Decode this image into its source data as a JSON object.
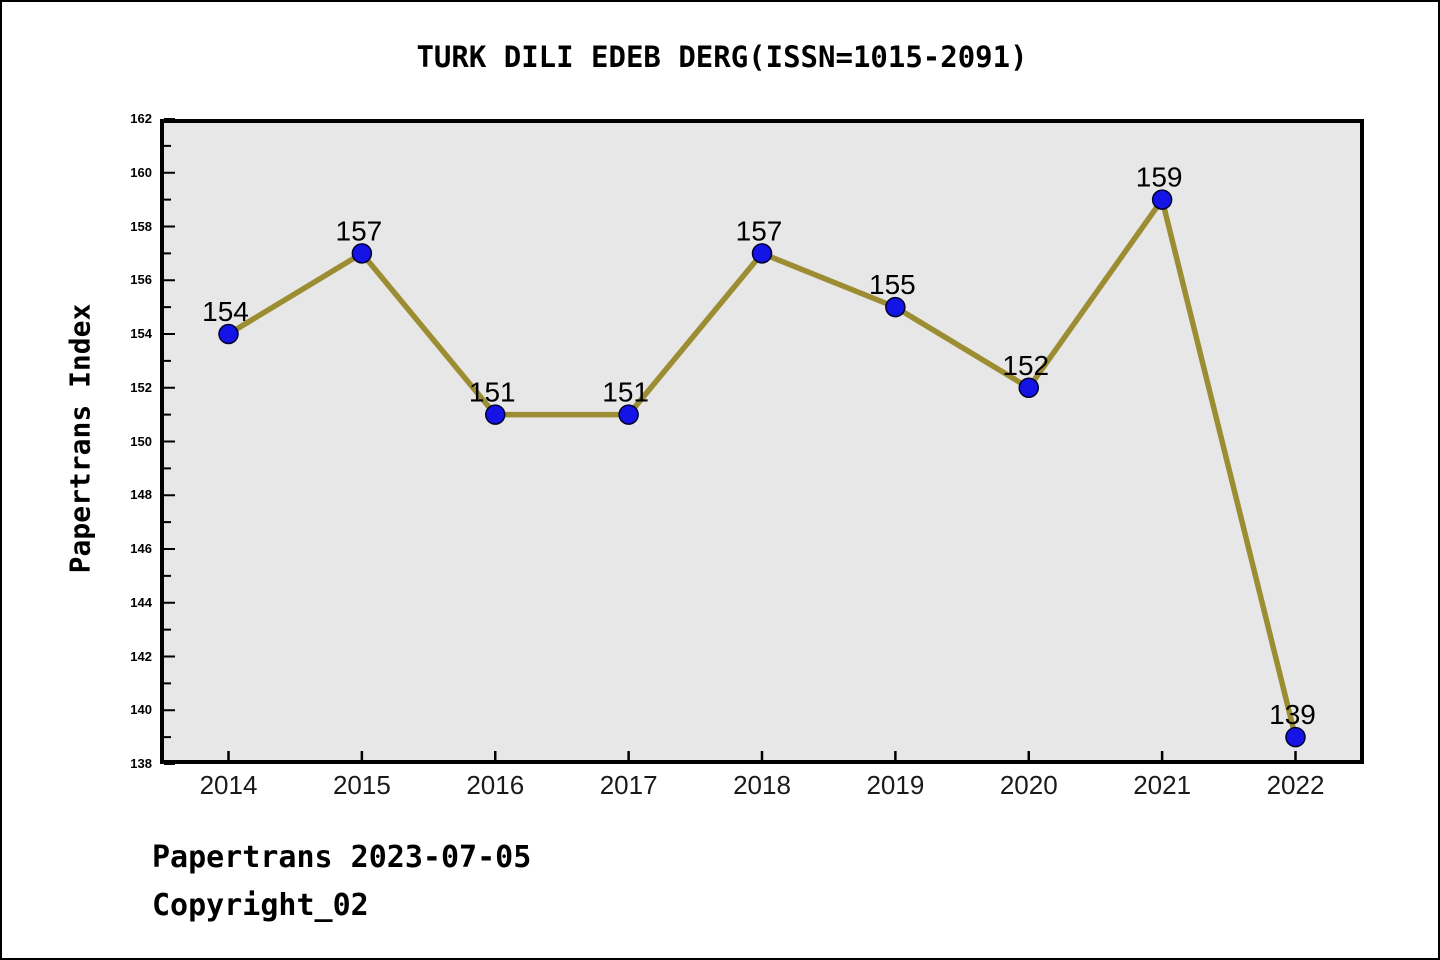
{
  "chart_data": {
    "type": "line",
    "title": "TURK DILI EDEB DERG(ISSN=1015-2091)",
    "xlabel": "",
    "ylabel": "Papertrans Index",
    "x": [
      2014,
      2015,
      2016,
      2017,
      2018,
      2019,
      2020,
      2021,
      2022
    ],
    "series": [
      {
        "name": "Papertrans Index",
        "values": [
          154,
          157,
          151,
          151,
          157,
          155,
          152,
          159,
          139
        ]
      }
    ],
    "point_labels": [
      "154",
      "157",
      "151",
      "151",
      "157",
      "155",
      "152",
      "159",
      "139"
    ],
    "ylim": [
      138,
      162
    ],
    "ytick_major_step": 2,
    "ytick_minor_step": 1,
    "grid": false,
    "legend": null,
    "colors": {
      "line": "#9c8d33",
      "marker_fill": "#1414e6",
      "marker_edge": "#000030",
      "plot_bg": "#e7e7e7",
      "spine": "#000000",
      "text": "#000000",
      "figure_bg": "#ffffff"
    }
  },
  "footer": {
    "line1": "Papertrans 2023-07-05",
    "line2": "Copyright_02"
  }
}
